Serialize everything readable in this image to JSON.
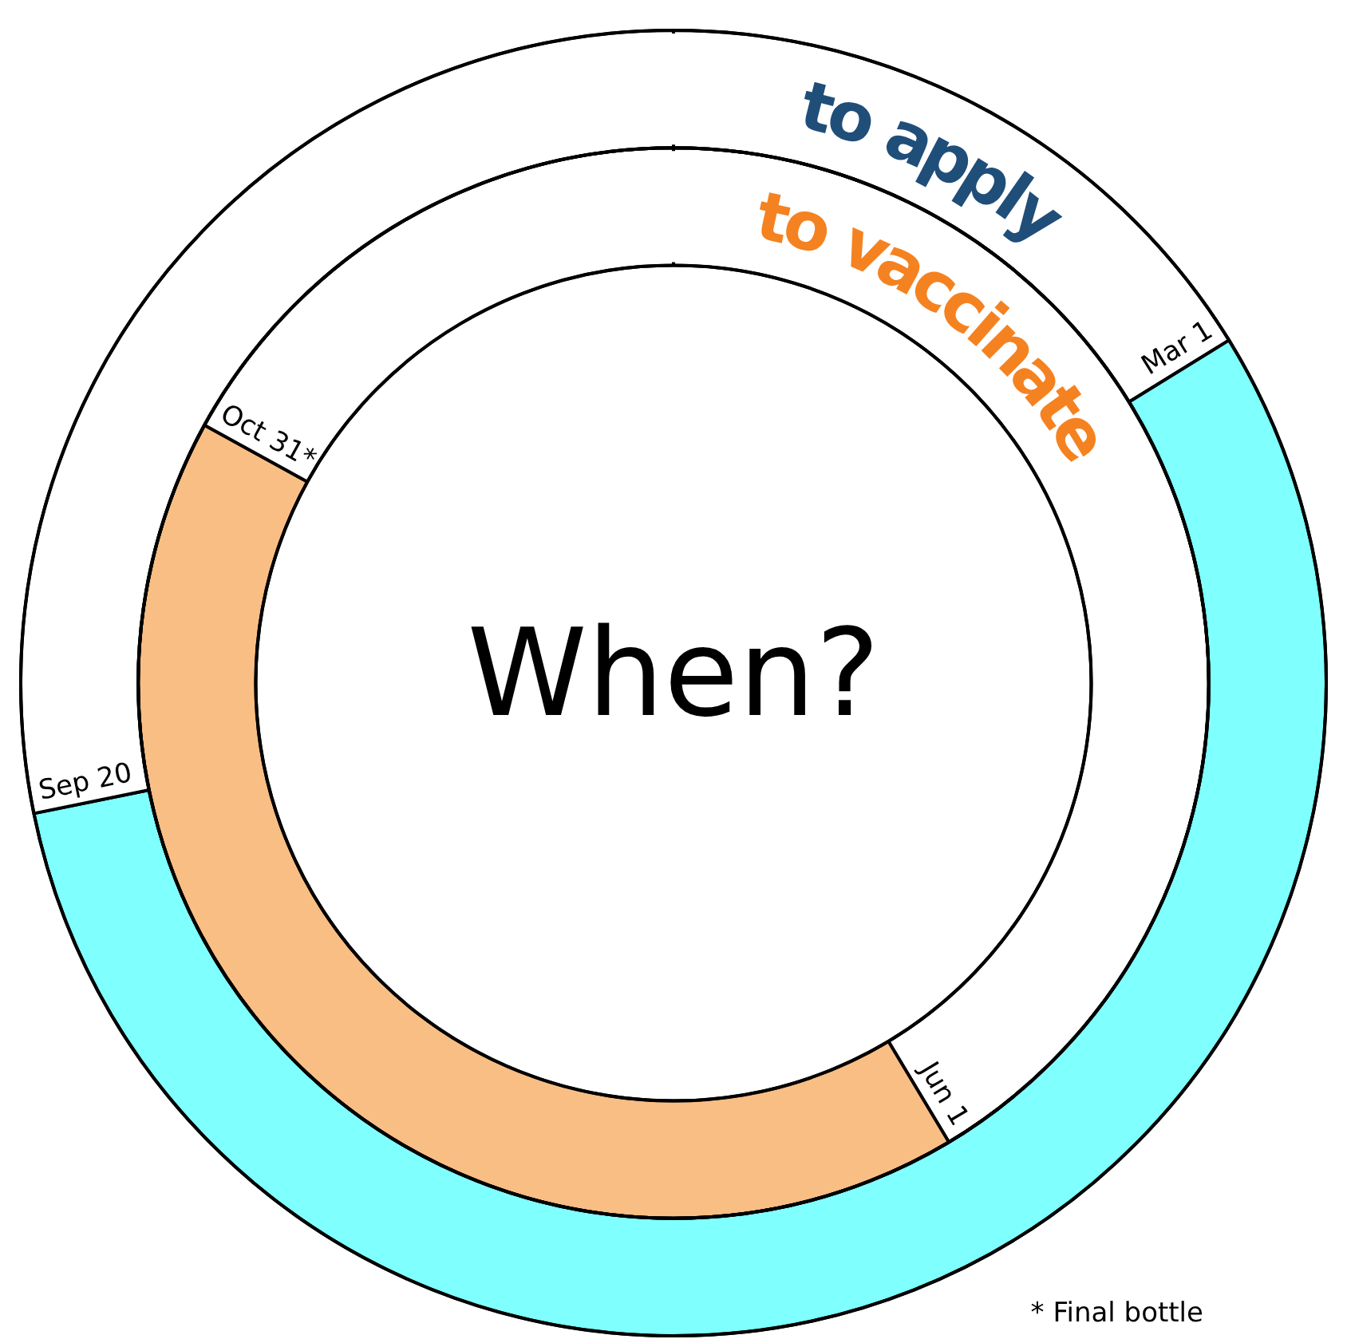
{
  "chart_data": {
    "type": "donut",
    "title": "When?",
    "categories": [
      null,
      null,
      null
    ],
    "series": [
      {
        "name": "to apply",
        "color": "#1f4e79",
        "colors": [
          "#ffffff",
          "#80ffff",
          "#ffffff"
        ],
        "values": [
          16.2,
          55.6,
          28.2
        ],
        "value_labels": [
          "Mar 1",
          null,
          "Sep 20"
        ]
      },
      {
        "name": "to vaccinate",
        "color": "#f58220",
        "colors": [
          "#ffffff",
          "#f9be84",
          "#ffffff"
        ],
        "values": [
          41.4,
          41.6,
          17.0
        ],
        "value_labels": [
          "Jun 1",
          null,
          "Oct 31*"
        ]
      }
    ],
    "annotations": [
      "* Final bottle"
    ],
    "legend": false
  }
}
